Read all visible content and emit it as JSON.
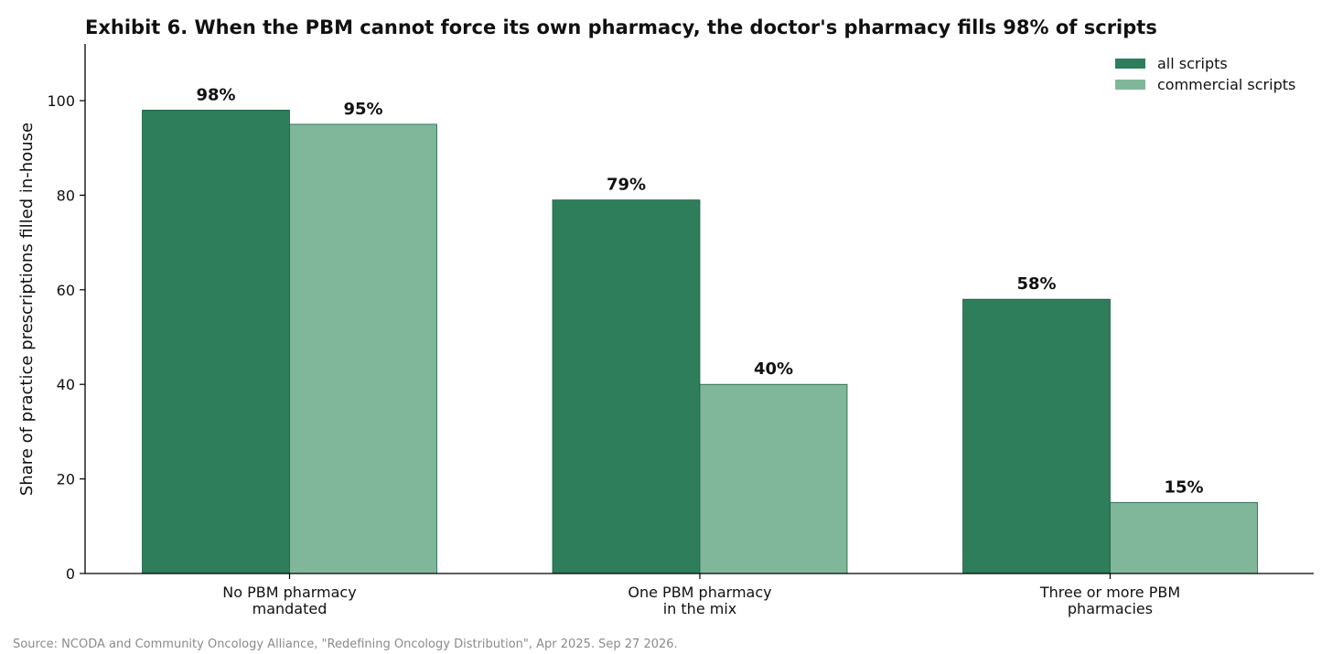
{
  "chart_data": {
    "type": "bar",
    "title": "Exhibit 6. When the PBM cannot force its own pharmacy, the doctor's pharmacy fills 98% of scripts",
    "xlabel": "",
    "ylabel": "Share of practice prescriptions filled in-house",
    "ylim": [
      0,
      112
    ],
    "yticks": [
      "0",
      "20",
      "40",
      "60",
      "80",
      "100"
    ],
    "categories": [
      [
        "No PBM pharmacy",
        "mandated"
      ],
      [
        "One PBM pharmacy",
        "in the mix"
      ],
      [
        "Three or more PBM",
        "pharmacies"
      ]
    ],
    "series": [
      {
        "name": "all scripts",
        "values": [
          98,
          79,
          58
        ],
        "labels": [
          "98%",
          "79%",
          "58%"
        ],
        "color": "#2e7d5b"
      },
      {
        "name": "commercial scripts",
        "values": [
          95,
          40,
          15
        ],
        "labels": [
          "95%",
          "40%",
          "15%"
        ],
        "color": "#80b79b"
      }
    ],
    "legend_position": "top-right",
    "grid": false
  },
  "source_note": "Source: NCODA and Community Oncology Alliance, \"Redefining Oncology Distribution\", Apr 2025. Sep 27 2026."
}
